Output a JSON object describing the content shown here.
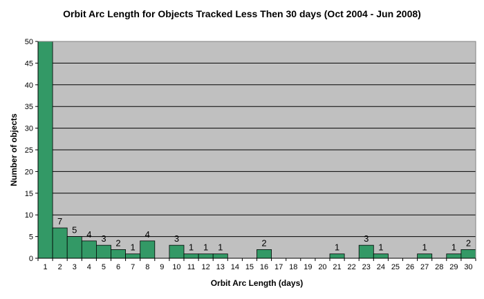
{
  "chart_data": {
    "type": "bar",
    "title": "Orbit Arc Length for Objects Tracked Less Then 30 days (Oct 2004 - Jun 2008)",
    "xlabel": "Orbit Arc Length (days)",
    "ylabel": "Number of objects",
    "ylim": [
      0,
      50
    ],
    "yticks": [
      0,
      5,
      10,
      15,
      20,
      25,
      30,
      35,
      40,
      45,
      50
    ],
    "grid": true,
    "legend": "none",
    "colors": {
      "bar": "#339966",
      "bar_edge": "#000000",
      "plot_bg": "#c0c0c0",
      "grid": "#000000"
    },
    "categories": [
      "1",
      "2",
      "3",
      "4",
      "5",
      "6",
      "7",
      "8",
      "9",
      "10",
      "11",
      "12",
      "13",
      "14",
      "15",
      "16",
      "17",
      "18",
      "19",
      "20",
      "21",
      "22",
      "23",
      "24",
      "25",
      "26",
      "27",
      "28",
      "29",
      "30"
    ],
    "values": [
      50,
      7,
      5,
      4,
      3,
      2,
      1,
      4,
      0,
      3,
      1,
      1,
      1,
      0,
      0,
      2,
      0,
      0,
      0,
      0,
      1,
      0,
      3,
      1,
      0,
      0,
      1,
      0,
      1,
      2
    ],
    "data_labels": [
      "",
      "7",
      "5",
      "4",
      "3",
      "2",
      "1",
      "4",
      "",
      "3",
      "1",
      "1",
      "1",
      "",
      "",
      "2",
      "",
      "",
      "",
      "",
      "1",
      "",
      "3",
      "1",
      "",
      "",
      "1",
      "",
      "1",
      "2"
    ]
  }
}
